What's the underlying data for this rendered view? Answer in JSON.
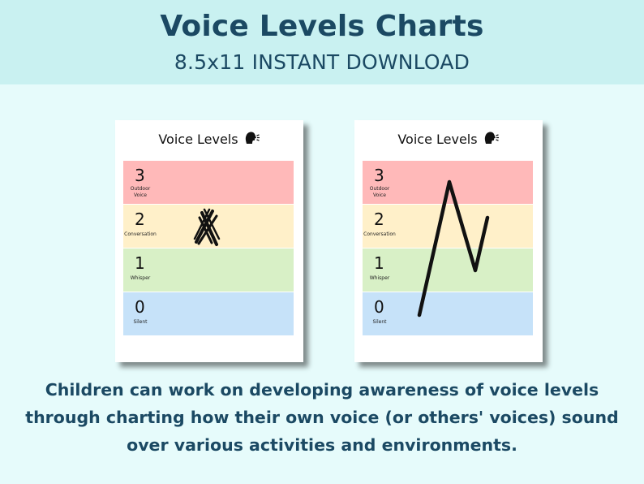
{
  "header": {
    "title": "Voice Levels Charts",
    "subtitle": "8.5x11 INSTANT DOWNLOAD"
  },
  "cards": [
    {
      "title": "Voice Levels",
      "icon": "speaking-head-icon",
      "mark": "x-mark-on-level-2",
      "levels": [
        {
          "number": "3",
          "label": "Outdoor Voice",
          "color": "#ffb9b9"
        },
        {
          "number": "2",
          "label": "Conversation",
          "color": "#fff0c9"
        },
        {
          "number": "1",
          "label": "Whisper",
          "color": "#d8f0c6"
        },
        {
          "number": "0",
          "label": "Silent",
          "color": "#c6e2f9"
        }
      ]
    },
    {
      "title": "Voice Levels",
      "icon": "speaking-head-icon",
      "mark": "line-chart-zigzag",
      "levels": [
        {
          "number": "3",
          "label": "Outdoor Voice",
          "color": "#ffb9b9"
        },
        {
          "number": "2",
          "label": "Conversation",
          "color": "#fff0c9"
        },
        {
          "number": "1",
          "label": "Whisper",
          "color": "#d8f0c6"
        },
        {
          "number": "0",
          "label": "Silent",
          "color": "#c6e2f9"
        }
      ]
    }
  ],
  "caption": "Children can work on developing awareness of voice levels through charting how their own voice (or others' voices) sound over various activities and environments.",
  "colors": {
    "background": "#e6fbfb",
    "header_band": "#c9f1f1",
    "text_dark_blue": "#1b4963"
  }
}
